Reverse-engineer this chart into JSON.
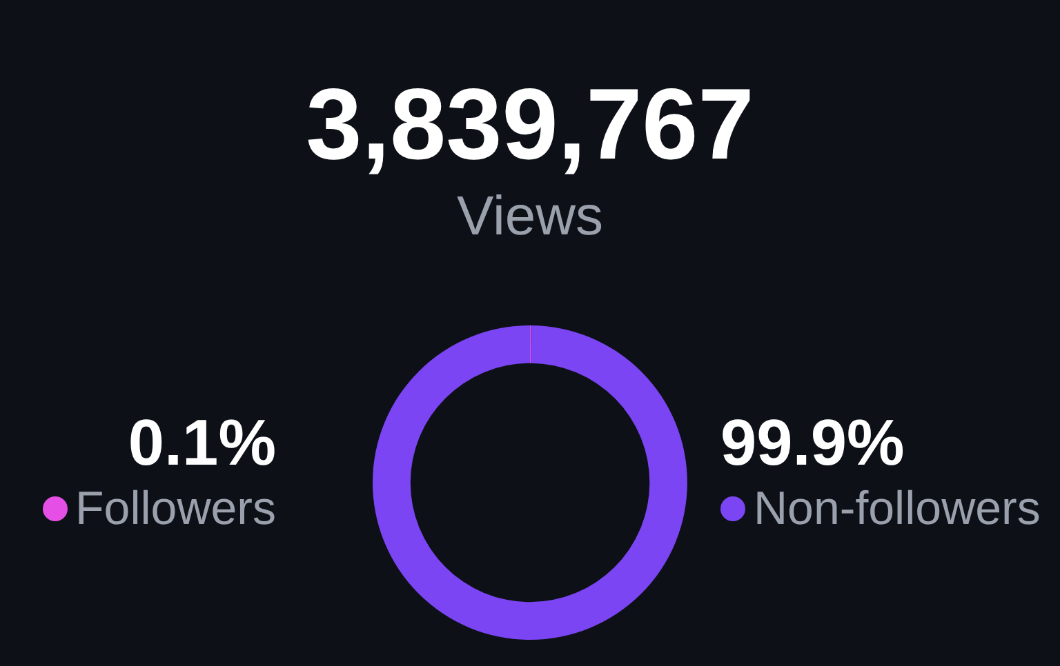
{
  "chart_data": {
    "type": "donut",
    "title": "3,839,767",
    "subtitle": "Views",
    "categories": [
      "Followers",
      "Non-followers"
    ],
    "values": [
      0.1,
      99.9
    ],
    "colors": [
      "#e64fe6",
      "#7b45f3"
    ],
    "value_labels": [
      "0.1%",
      "99.9%"
    ],
    "legend": "center"
  }
}
